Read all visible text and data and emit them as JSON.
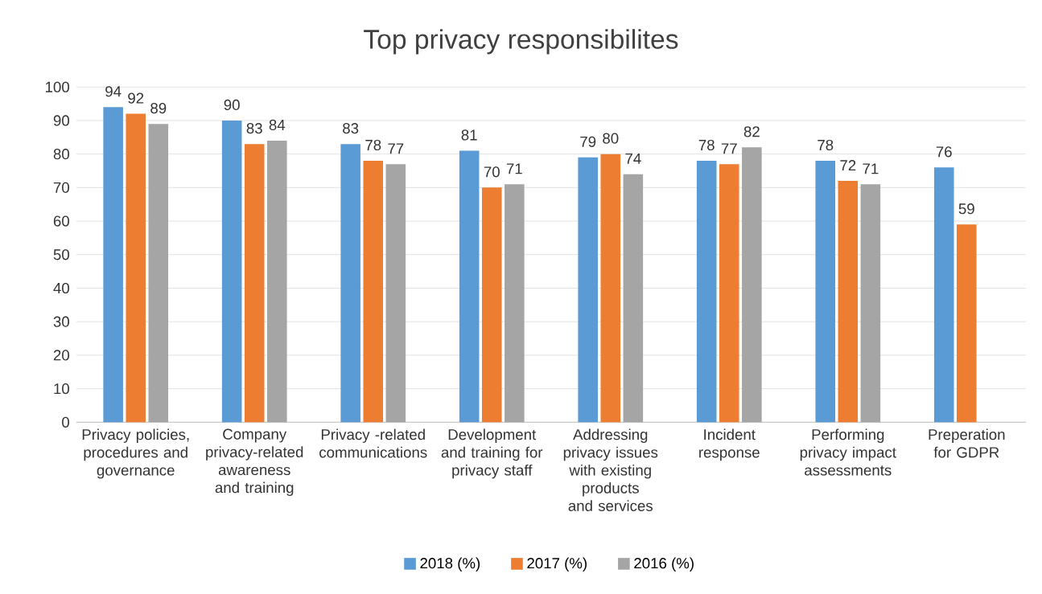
{
  "chart_data": {
    "type": "bar",
    "title": "Top privacy responsibilites",
    "categories": [
      "Privacy policies, procedures and governance",
      "Company privacy-related awareness and training",
      "Privacy -related communications",
      "Development and training for privacy staff",
      "Addressing privacy issues with existing products and services",
      "Incident response",
      "Performing privacy impact assessments",
      "Preperation for GDPR"
    ],
    "series": [
      {
        "name": "2018 (%)",
        "color": "#5b9bd5",
        "values": [
          94,
          90,
          83,
          81,
          79,
          78,
          78,
          76
        ]
      },
      {
        "name": "2017 (%)",
        "color": "#ed7d31",
        "values": [
          92,
          83,
          78,
          70,
          80,
          77,
          72,
          59
        ]
      },
      {
        "name": "2016 (%)",
        "color": "#a5a5a5",
        "values": [
          89,
          84,
          77,
          71,
          74,
          82,
          71,
          null
        ]
      }
    ],
    "ylim": [
      0,
      100
    ],
    "yticks": [
      0,
      10,
      20,
      30,
      40,
      50,
      60,
      70,
      80,
      90,
      100
    ],
    "grid": "y",
    "legend": "bottom",
    "data_labels": true
  }
}
